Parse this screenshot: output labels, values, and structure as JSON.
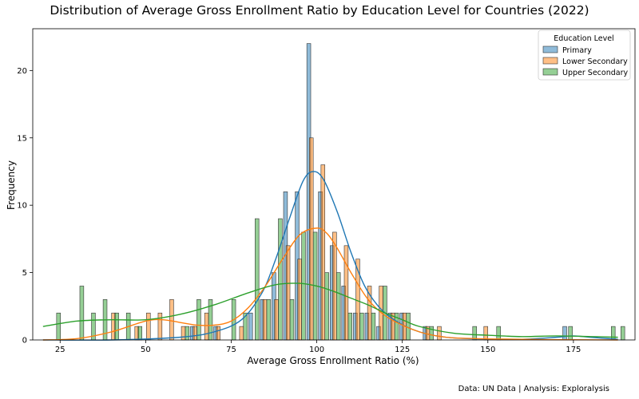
{
  "chart_data": {
    "type": "bar",
    "title": "Distribution of Average Gross Enrollment Ratio by Education Level for Countries (2022)",
    "xlabel": "Average Gross Enrollment Ratio (%)",
    "ylabel": "Frequency",
    "xlim": [
      17,
      193
    ],
    "ylim": [
      0,
      23.1
    ],
    "xticks": [
      25,
      50,
      75,
      100,
      125,
      150,
      175
    ],
    "yticks": [
      0,
      5,
      10,
      15,
      20
    ],
    "grid": false,
    "legend": {
      "title": "Education Level",
      "placement": "top-right"
    },
    "bin_width": 3.4,
    "series": [
      {
        "name": "Primary",
        "color": "#1f77b4",
        "bins": [
          {
            "x": 64.8,
            "count": 1
          },
          {
            "x": 71.6,
            "count": 1
          },
          {
            "x": 81.8,
            "count": 2
          },
          {
            "x": 85.2,
            "count": 3
          },
          {
            "x": 88.6,
            "count": 5
          },
          {
            "x": 92.0,
            "count": 11
          },
          {
            "x": 95.4,
            "count": 11
          },
          {
            "x": 98.8,
            "count": 22
          },
          {
            "x": 102.2,
            "count": 11
          },
          {
            "x": 105.6,
            "count": 7
          },
          {
            "x": 109.0,
            "count": 4
          },
          {
            "x": 112.4,
            "count": 2
          },
          {
            "x": 115.8,
            "count": 2
          },
          {
            "x": 119.2,
            "count": 1
          },
          {
            "x": 122.6,
            "count": 2
          },
          {
            "x": 126.0,
            "count": 2
          },
          {
            "x": 132.8,
            "count": 1
          },
          {
            "x": 173.6,
            "count": 1
          }
        ],
        "kde_x": [
          20,
          40,
          60,
          70,
          78,
          84,
          88,
          92,
          96,
          99,
          102,
          106,
          110,
          114,
          118,
          122,
          126,
          130,
          135,
          140,
          150,
          160,
          170,
          175,
          180,
          188
        ],
        "kde_y": [
          0,
          0,
          0.2,
          0.6,
          1.5,
          3.5,
          6.0,
          9.0,
          11.8,
          12.5,
          11.9,
          9.5,
          6.5,
          4.0,
          2.5,
          1.6,
          1.0,
          0.6,
          0.3,
          0.15,
          0.05,
          0.05,
          0.2,
          0.3,
          0.2,
          0.05
        ]
      },
      {
        "name": "Lower Secondary",
        "color": "#ff7f0e",
        "bins": [
          {
            "x": 40.6,
            "count": 2
          },
          {
            "x": 47.4,
            "count": 1
          },
          {
            "x": 50.8,
            "count": 2
          },
          {
            "x": 54.2,
            "count": 2
          },
          {
            "x": 57.6,
            "count": 3
          },
          {
            "x": 61.0,
            "count": 1
          },
          {
            "x": 64.4,
            "count": 1
          },
          {
            "x": 67.8,
            "count": 2
          },
          {
            "x": 71.2,
            "count": 1
          },
          {
            "x": 78.0,
            "count": 1
          },
          {
            "x": 84.8,
            "count": 3
          },
          {
            "x": 88.2,
            "count": 3
          },
          {
            "x": 91.6,
            "count": 7
          },
          {
            "x": 95.0,
            "count": 6
          },
          {
            "x": 98.4,
            "count": 15
          },
          {
            "x": 101.8,
            "count": 13
          },
          {
            "x": 105.2,
            "count": 8
          },
          {
            "x": 108.6,
            "count": 7
          },
          {
            "x": 112.0,
            "count": 6
          },
          {
            "x": 115.4,
            "count": 4
          },
          {
            "x": 118.8,
            "count": 4
          },
          {
            "x": 122.2,
            "count": 2
          },
          {
            "x": 125.6,
            "count": 2
          },
          {
            "x": 132.4,
            "count": 1
          },
          {
            "x": 135.8,
            "count": 1
          },
          {
            "x": 149.4,
            "count": 1
          }
        ],
        "kde_x": [
          20,
          30,
          40,
          50,
          55,
          60,
          65,
          70,
          75,
          80,
          85,
          90,
          95,
          100,
          103,
          106,
          110,
          115,
          120,
          125,
          130,
          135,
          140,
          150,
          160,
          170,
          188
        ],
        "kde_y": [
          0,
          0.1,
          0.6,
          1.4,
          1.5,
          1.3,
          1.1,
          1.1,
          1.4,
          2.4,
          4.0,
          6.0,
          7.8,
          8.3,
          7.9,
          6.8,
          5.0,
          3.0,
          1.8,
          1.1,
          0.6,
          0.3,
          0.15,
          0.08,
          0.05,
          0.02,
          0
        ]
      },
      {
        "name": "Upper Secondary",
        "color": "#2ca02c",
        "bins": [
          {
            "x": 23.4,
            "count": 2
          },
          {
            "x": 30.2,
            "count": 4
          },
          {
            "x": 33.6,
            "count": 2
          },
          {
            "x": 37.0,
            "count": 3
          },
          {
            "x": 40.4,
            "count": 2
          },
          {
            "x": 43.8,
            "count": 2
          },
          {
            "x": 47.2,
            "count": 1
          },
          {
            "x": 61.0,
            "count": 1
          },
          {
            "x": 64.4,
            "count": 3
          },
          {
            "x": 67.8,
            "count": 3
          },
          {
            "x": 74.6,
            "count": 3
          },
          {
            "x": 78.0,
            "count": 2
          },
          {
            "x": 81.4,
            "count": 9
          },
          {
            "x": 84.8,
            "count": 3
          },
          {
            "x": 88.2,
            "count": 9
          },
          {
            "x": 91.6,
            "count": 3
          },
          {
            "x": 95.0,
            "count": 8
          },
          {
            "x": 98.4,
            "count": 8
          },
          {
            "x": 101.8,
            "count": 5
          },
          {
            "x": 105.2,
            "count": 5
          },
          {
            "x": 108.6,
            "count": 2
          },
          {
            "x": 112.0,
            "count": 2
          },
          {
            "x": 115.4,
            "count": 2
          },
          {
            "x": 118.8,
            "count": 4
          },
          {
            "x": 122.2,
            "count": 2
          },
          {
            "x": 125.6,
            "count": 2
          },
          {
            "x": 132.4,
            "count": 1
          },
          {
            "x": 145.0,
            "count": 1
          },
          {
            "x": 152.0,
            "count": 1
          },
          {
            "x": 173.0,
            "count": 1
          },
          {
            "x": 185.5,
            "count": 1
          },
          {
            "x": 188.3,
            "count": 1
          }
        ],
        "kde_x": [
          20,
          30,
          40,
          50,
          60,
          70,
          80,
          88,
          95,
          100,
          105,
          110,
          115,
          120,
          125,
          130,
          140,
          150,
          160,
          170,
          180,
          188
        ],
        "kde_y": [
          1.0,
          1.4,
          1.5,
          1.5,
          1.9,
          2.6,
          3.5,
          4.1,
          4.2,
          4.0,
          3.6,
          3.1,
          2.6,
          2.0,
          1.5,
          1.0,
          0.5,
          0.35,
          0.25,
          0.3,
          0.25,
          0.2
        ]
      }
    ],
    "source_note": "Data: UN Data | Analysis: Exploralysis"
  }
}
